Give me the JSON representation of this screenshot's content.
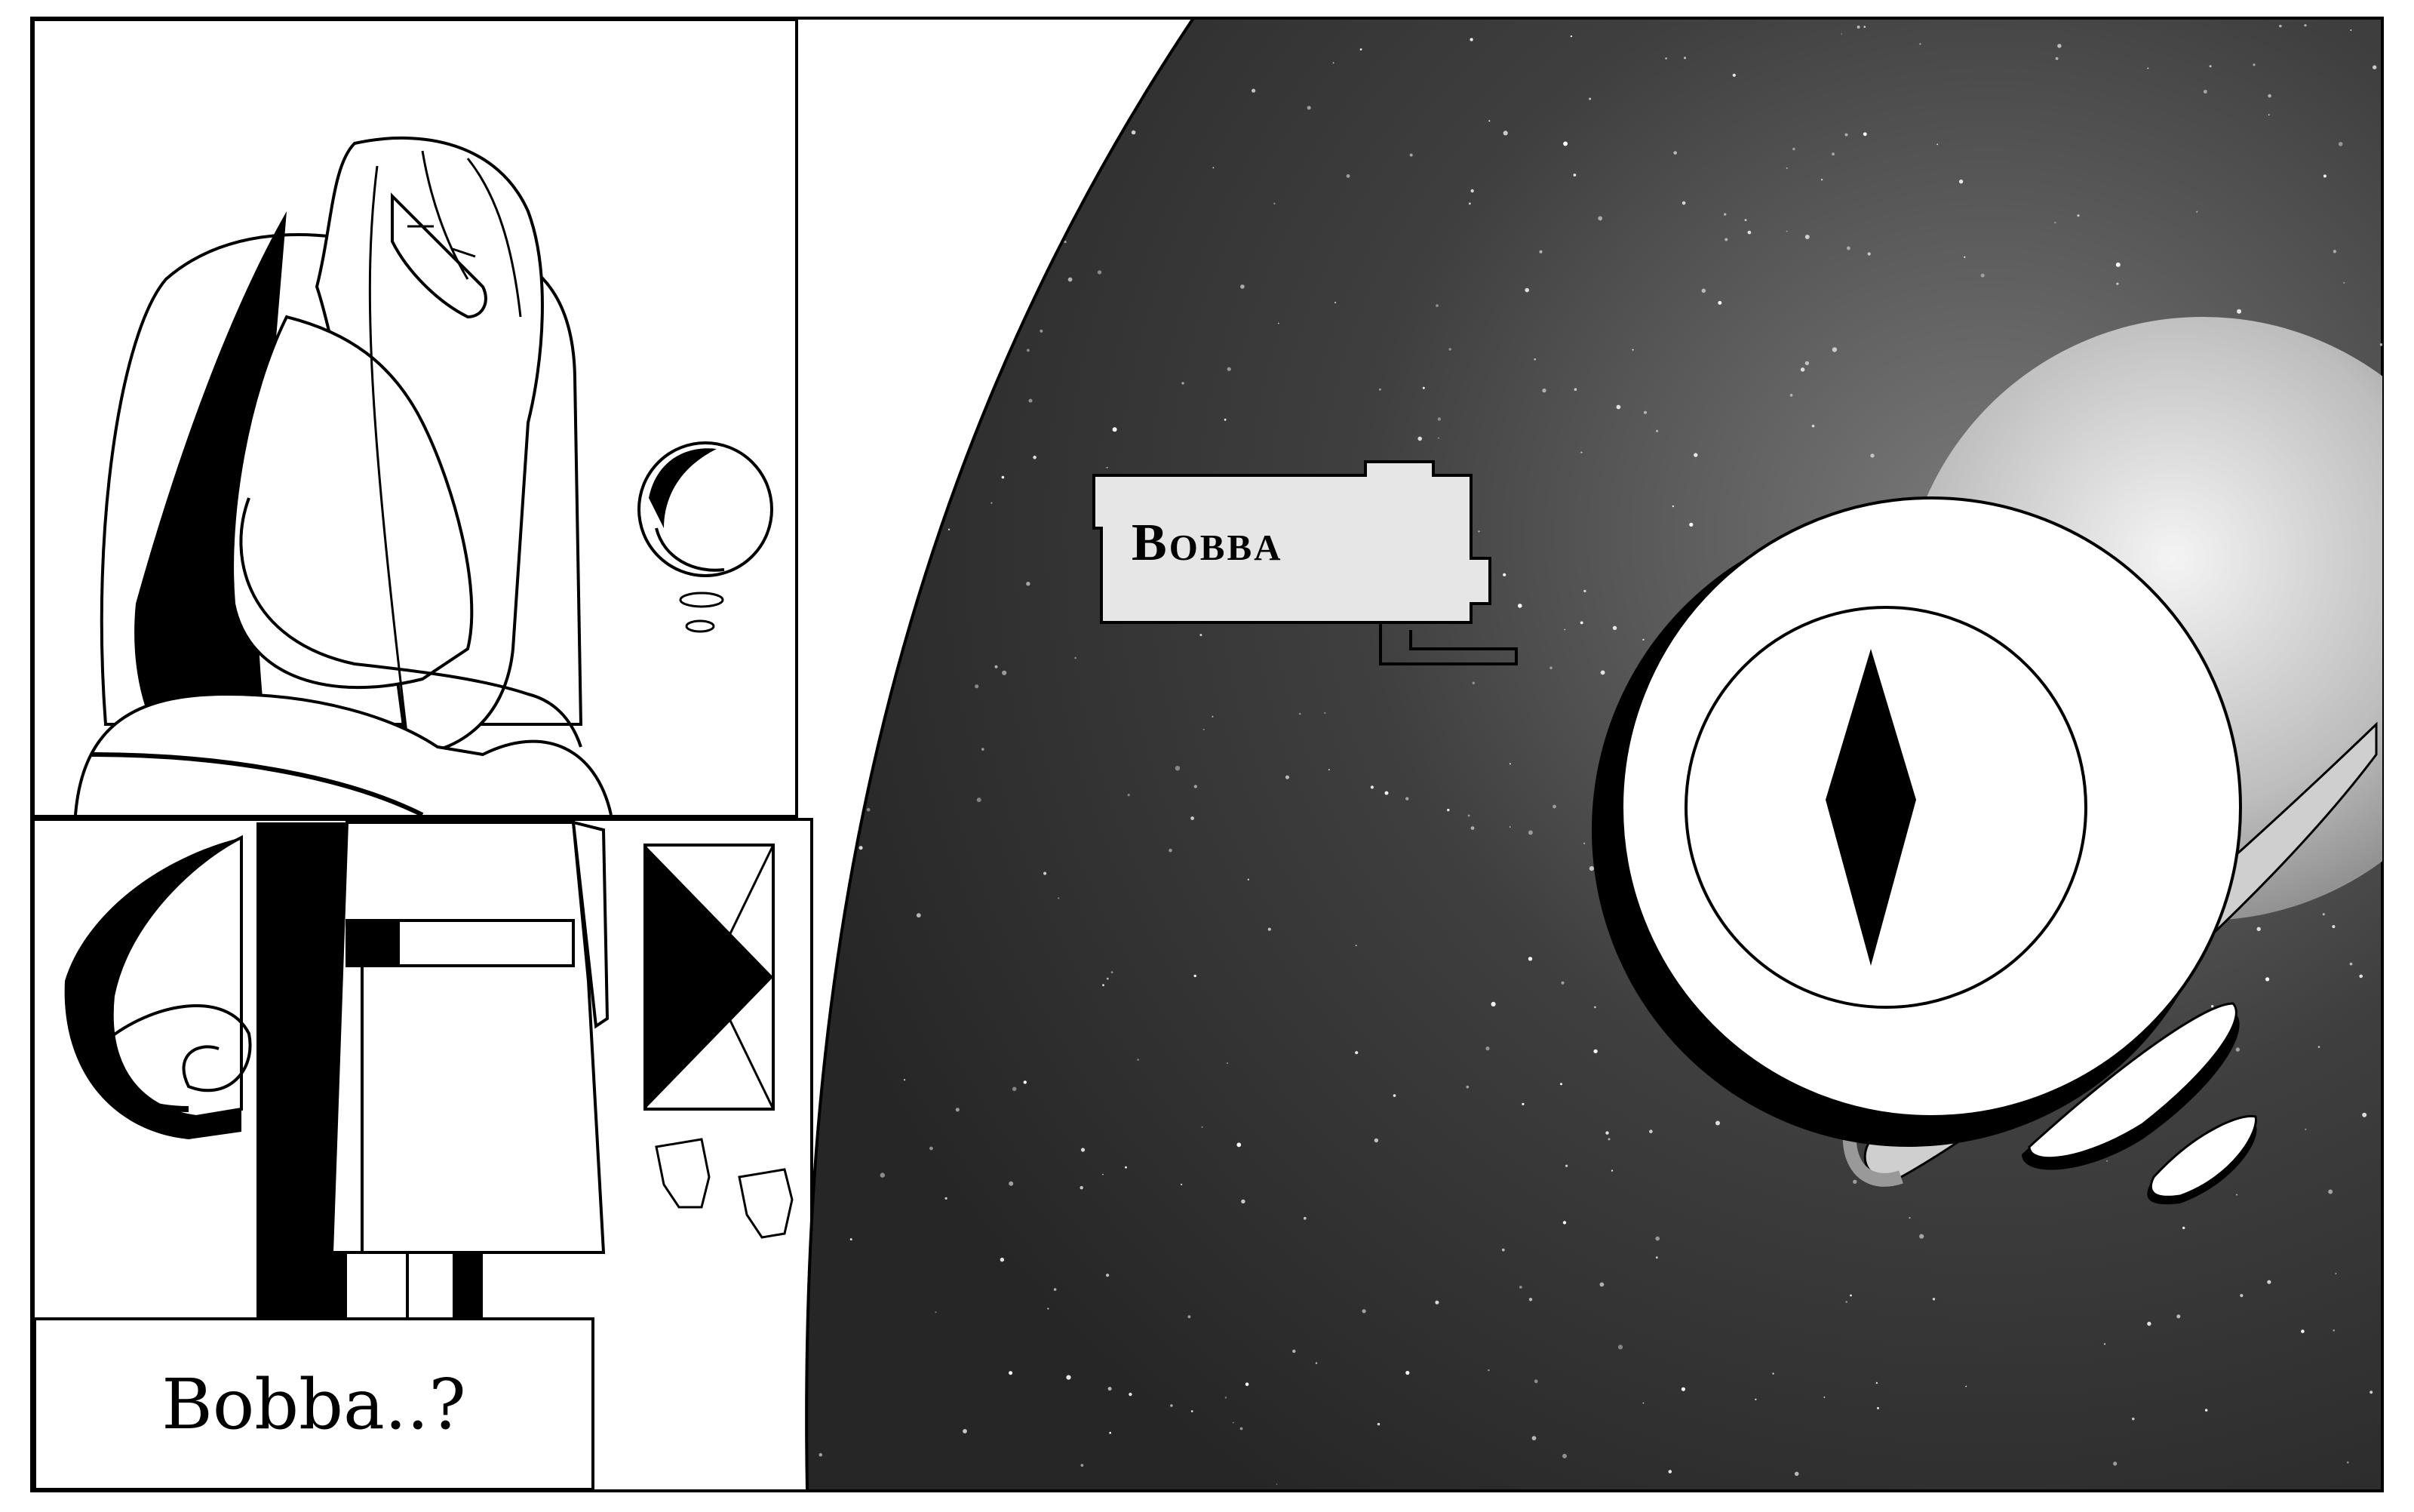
{
  "panels": {
    "top_left": {
      "subject": "girl-sitting-on-pod"
    },
    "bottom_left": {
      "caption": "Bobba..?"
    },
    "right": {
      "nameplate": "Bobba"
    }
  },
  "colors": {
    "ink": "#000000",
    "paper": "#ffffff",
    "space": "#3a3a3a",
    "planet": "#d9d9d9",
    "nameplate_fill": "#e6e6e6"
  }
}
